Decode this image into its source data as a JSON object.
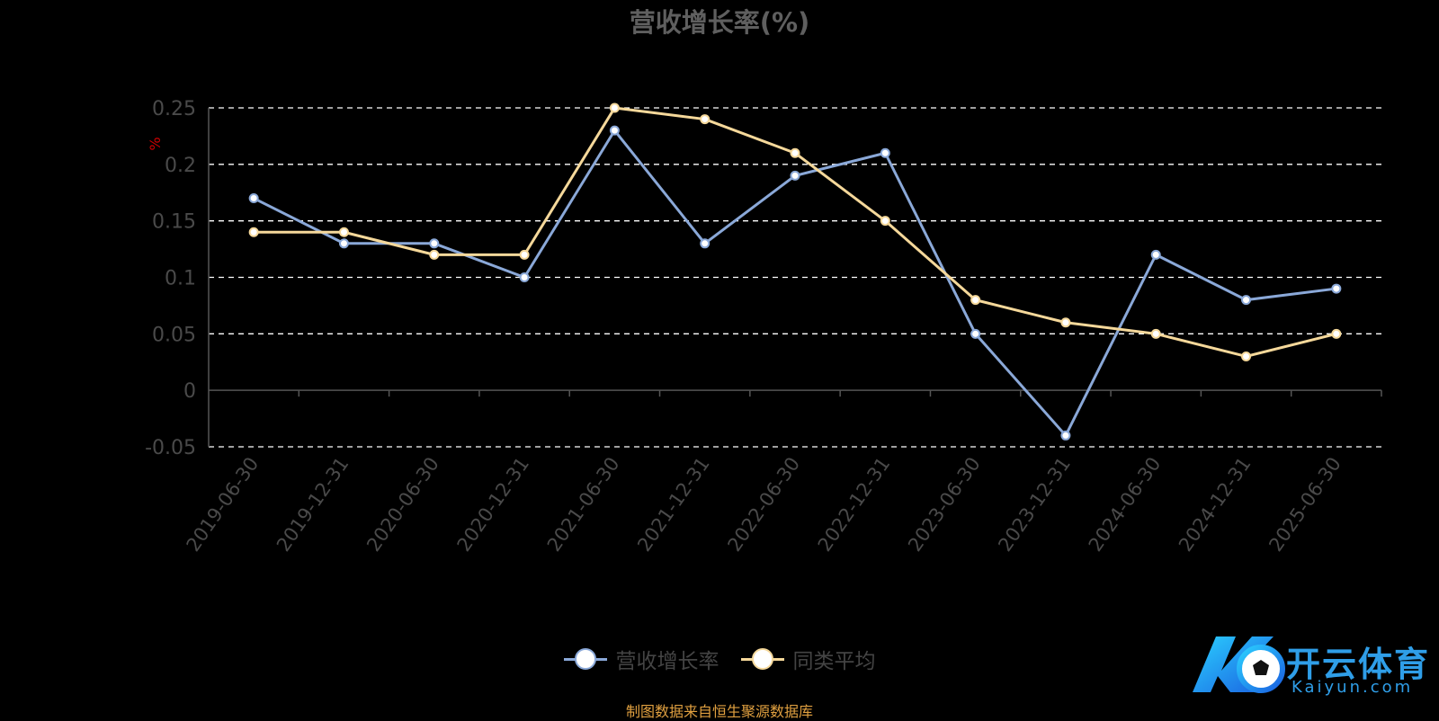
{
  "title": "营收增长率(%)",
  "source_note": "制图数据来自恒生聚源数据库",
  "logo": {
    "text": "开云体育",
    "sub": "Kaiyun.com"
  },
  "chart_data": {
    "type": "line",
    "title": "营收增长率(%)",
    "ylabel": "%",
    "xlabel": "",
    "categories": [
      "2019-06-30",
      "2019-12-31",
      "2020-06-30",
      "2020-12-31",
      "2021-06-30",
      "2021-12-31",
      "2022-06-30",
      "2022-12-31",
      "2023-06-30",
      "2023-12-31",
      "2024-06-30",
      "2024-12-31",
      "2025-06-30"
    ],
    "ylim": [
      -0.05,
      0.25
    ],
    "yticks": [
      -0.05,
      0,
      0.05,
      0.1,
      0.15,
      0.2,
      0.25
    ],
    "grid": true,
    "legend_position": "bottom-center",
    "series": [
      {
        "name": "营收增长率",
        "color": "#8aa8d8",
        "values": [
          0.17,
          0.13,
          0.13,
          0.1,
          0.23,
          0.13,
          0.19,
          0.21,
          0.05,
          -0.04,
          0.12,
          0.08,
          0.09
        ]
      },
      {
        "name": "同类平均",
        "color": "#f5d89a",
        "values": [
          0.14,
          0.14,
          0.12,
          0.12,
          0.25,
          0.24,
          0.21,
          0.15,
          0.08,
          0.06,
          0.05,
          0.03,
          0.05
        ]
      }
    ]
  },
  "colors": {
    "axis": "#555555",
    "grid": "#ffffff",
    "tick_label": "#4a4a4a",
    "ylabel": "#cc0000"
  }
}
